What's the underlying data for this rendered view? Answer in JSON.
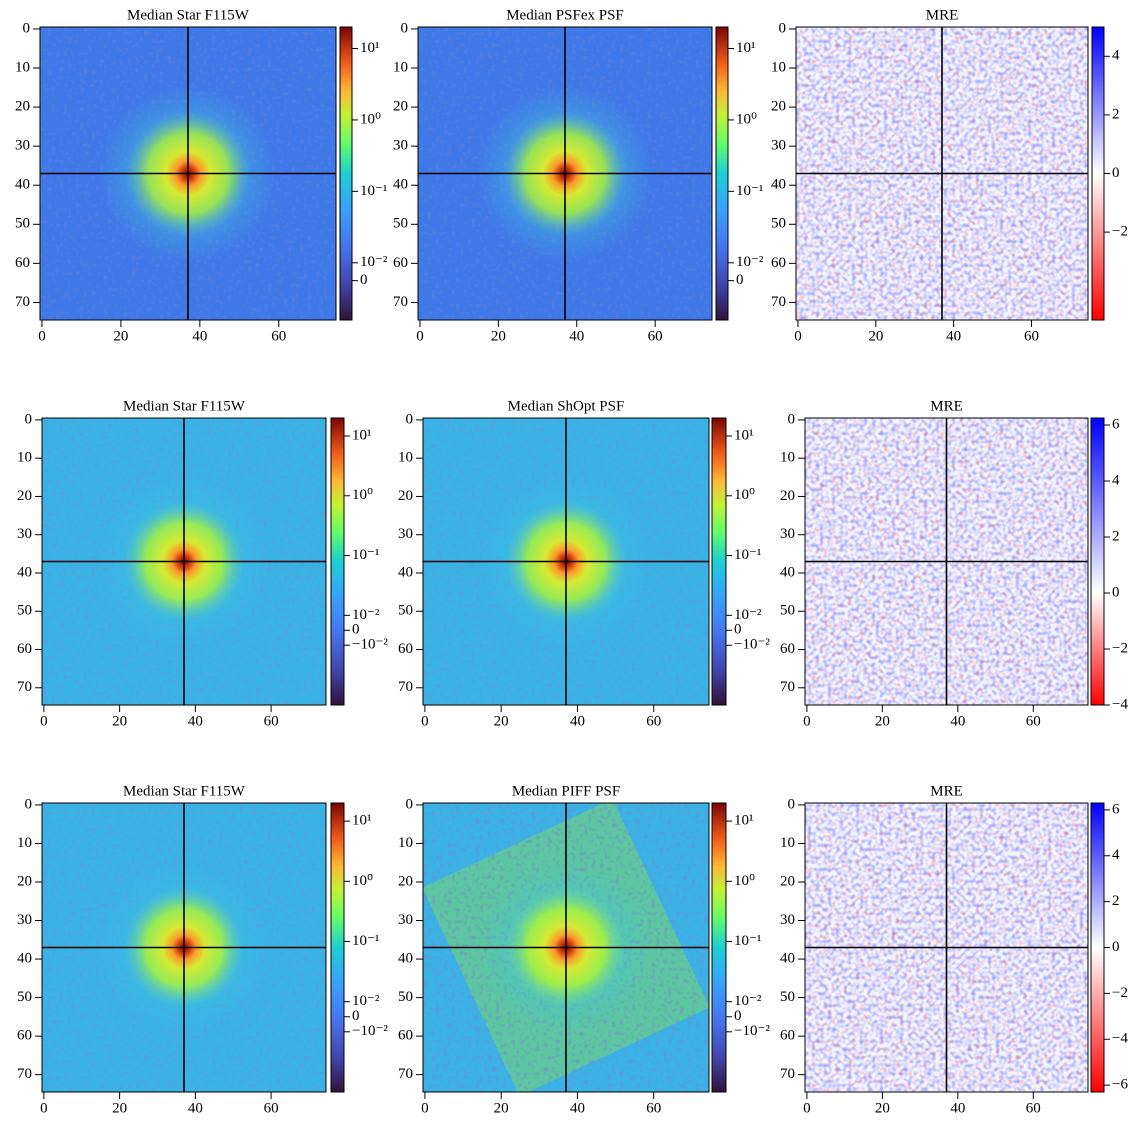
{
  "chart_data": [
    {
      "type": "heatmap",
      "title": "Median Star F115W",
      "colormap": "jet",
      "xlim": [
        -0.5,
        74.5
      ],
      "ylim": [
        74.5,
        -0.5
      ],
      "xticks": [
        0,
        20,
        40,
        60
      ],
      "yticks": [
        0,
        10,
        20,
        30,
        40,
        50,
        60,
        70
      ],
      "crosshair": 37,
      "colorbar": {
        "scale": "symlog",
        "linthresh": 0.01,
        "linscale": 0.25,
        "clim": [
          -0.02,
          20
        ],
        "ticks": [
          {
            "value": 10,
            "label": "10¹"
          },
          {
            "value": 1,
            "label": "10⁰"
          },
          {
            "value": 0.1,
            "label": "10⁻¹"
          },
          {
            "value": 0.01,
            "label": "10⁻²"
          },
          0
        ]
      }
    },
    {
      "type": "heatmap",
      "title": "Median PSFex PSF",
      "colormap": "jet",
      "xlim": [
        -0.5,
        74.5
      ],
      "ylim": [
        74.5,
        -0.5
      ],
      "xticks": [
        0,
        20,
        40,
        60
      ],
      "yticks": [
        0,
        10,
        20,
        30,
        40,
        50,
        60,
        70
      ],
      "crosshair": 37,
      "colorbar": {
        "scale": "symlog",
        "linthresh": 0.01,
        "linscale": 0.25,
        "clim": [
          -0.02,
          20
        ],
        "ticks": [
          {
            "value": 10,
            "label": "10¹"
          },
          {
            "value": 1,
            "label": "10⁰"
          },
          {
            "value": 0.1,
            "label": "10⁻¹"
          },
          {
            "value": 0.01,
            "label": "10⁻²"
          },
          0
        ]
      }
    },
    {
      "type": "heatmap",
      "title": "MRE",
      "colormap": "bwr",
      "xlim": [
        -0.5,
        74.5
      ],
      "ylim": [
        74.5,
        -0.5
      ],
      "xticks": [
        0,
        20,
        40,
        60
      ],
      "yticks": [
        0,
        10,
        20,
        30,
        40,
        50,
        60,
        70
      ],
      "crosshair": 37,
      "colorbar": {
        "scale": "linear",
        "clim": [
          -5,
          5
        ],
        "ticks": [
          4,
          2,
          0,
          {
            "value": -2,
            "label": "−2"
          }
        ]
      }
    },
    {
      "type": "heatmap",
      "title": "Median Star F115W",
      "colormap": "jet",
      "xlim": [
        -0.5,
        74.5
      ],
      "ylim": [
        74.5,
        -0.5
      ],
      "xticks": [
        0,
        20,
        40,
        60
      ],
      "yticks": [
        0,
        10,
        20,
        30,
        40,
        50,
        60,
        70
      ],
      "crosshair": 37,
      "colorbar": {
        "scale": "symlog",
        "linthresh": 0.01,
        "linscale": 0.25,
        "clim": [
          -0.1,
          20
        ],
        "ticks": [
          {
            "value": 10,
            "label": "10¹"
          },
          {
            "value": 1,
            "label": "10⁰"
          },
          {
            "value": 0.1,
            "label": "10⁻¹"
          },
          {
            "value": 0.01,
            "label": "10⁻²"
          },
          0,
          {
            "value": -0.01,
            "label": "−10⁻²"
          }
        ]
      }
    },
    {
      "type": "heatmap",
      "title": "Median ShOpt PSF",
      "colormap": "jet",
      "xlim": [
        -0.5,
        74.5
      ],
      "ylim": [
        74.5,
        -0.5
      ],
      "xticks": [
        0,
        20,
        40,
        60
      ],
      "yticks": [
        0,
        10,
        20,
        30,
        40,
        50,
        60,
        70
      ],
      "crosshair": 37,
      "colorbar": {
        "scale": "symlog",
        "linthresh": 0.01,
        "linscale": 0.25,
        "clim": [
          -0.1,
          20
        ],
        "ticks": [
          {
            "value": 10,
            "label": "10¹"
          },
          {
            "value": 1,
            "label": "10⁰"
          },
          {
            "value": 0.1,
            "label": "10⁻¹"
          },
          {
            "value": 0.01,
            "label": "10⁻²"
          },
          0,
          {
            "value": -0.01,
            "label": "−10⁻²"
          }
        ]
      }
    },
    {
      "type": "heatmap",
      "title": "MRE",
      "colormap": "bwr",
      "xlim": [
        -0.5,
        74.5
      ],
      "ylim": [
        74.5,
        -0.5
      ],
      "xticks": [
        0,
        20,
        40,
        60
      ],
      "yticks": [
        0,
        10,
        20,
        30,
        40,
        50,
        60,
        70
      ],
      "crosshair": 37,
      "colorbar": {
        "scale": "linear",
        "clim": [
          -4,
          6.25
        ],
        "ticks": [
          6,
          4,
          2,
          0,
          {
            "value": -2,
            "label": "−2"
          },
          {
            "value": -4,
            "label": "−4"
          }
        ]
      }
    },
    {
      "type": "heatmap",
      "title": "Median Star F115W",
      "colormap": "jet",
      "xlim": [
        -0.5,
        74.5
      ],
      "ylim": [
        74.5,
        -0.5
      ],
      "xticks": [
        0,
        20,
        40,
        60
      ],
      "yticks": [
        0,
        10,
        20,
        30,
        40,
        50,
        60,
        70
      ],
      "crosshair": 37,
      "colorbar": {
        "scale": "symlog",
        "linthresh": 0.01,
        "linscale": 0.25,
        "clim": [
          -0.1,
          20
        ],
        "ticks": [
          {
            "value": 10,
            "label": "10¹"
          },
          {
            "value": 1,
            "label": "10⁰"
          },
          {
            "value": 0.1,
            "label": "10⁻¹"
          },
          {
            "value": 0.01,
            "label": "10⁻²"
          },
          0,
          {
            "value": -0.01,
            "label": "−10⁻²"
          }
        ]
      }
    },
    {
      "type": "heatmap",
      "title": "Median PIFF PSF",
      "colormap": "jet",
      "xlim": [
        -0.5,
        74.5
      ],
      "ylim": [
        74.5,
        -0.5
      ],
      "xticks": [
        0,
        20,
        40,
        60
      ],
      "yticks": [
        0,
        10,
        20,
        30,
        40,
        50,
        60,
        70
      ],
      "crosshair": 37,
      "colorbar": {
        "scale": "symlog",
        "linthresh": 0.01,
        "linscale": 0.25,
        "clim": [
          -0.1,
          20
        ],
        "ticks": [
          {
            "value": 10,
            "label": "10¹"
          },
          {
            "value": 1,
            "label": "10⁰"
          },
          {
            "value": 0.1,
            "label": "10⁻¹"
          },
          {
            "value": 0.01,
            "label": "10⁻²"
          },
          0,
          {
            "value": -0.01,
            "label": "−10⁻²"
          }
        ]
      }
    },
    {
      "type": "heatmap",
      "title": "MRE",
      "colormap": "bwr",
      "xlim": [
        -0.5,
        74.5
      ],
      "ylim": [
        74.5,
        -0.5
      ],
      "xticks": [
        0,
        20,
        40,
        60
      ],
      "yticks": [
        0,
        10,
        20,
        30,
        40,
        50,
        60,
        70
      ],
      "crosshair": 37,
      "colorbar": {
        "scale": "linear",
        "clim": [
          -6.3,
          6.3
        ],
        "ticks": [
          6,
          4,
          2,
          0,
          {
            "value": -2,
            "label": "−2"
          },
          {
            "value": -4,
            "label": "−4"
          },
          {
            "value": -6,
            "label": "−6"
          }
        ]
      }
    }
  ]
}
